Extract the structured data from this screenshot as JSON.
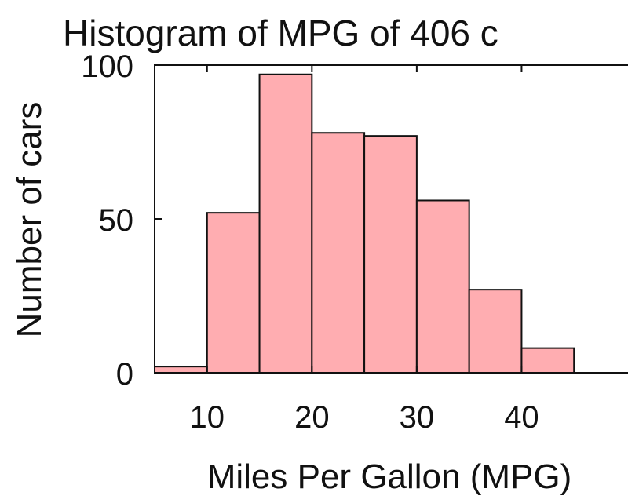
{
  "chart_data": {
    "type": "bar",
    "title": "Histogram of MPG of 406 c",
    "xlabel": "Miles Per Gallon (MPG)",
    "ylabel": "Number of cars",
    "bin_edges": [
      5,
      10,
      15,
      20,
      25,
      30,
      35,
      40,
      45
    ],
    "values": [
      2,
      52,
      97,
      78,
      77,
      56,
      27,
      8
    ],
    "xticks": [
      10,
      20,
      30,
      40
    ],
    "yticks": [
      0,
      50,
      100
    ],
    "xlim": [
      5,
      45
    ],
    "ylim": [
      0,
      100
    ],
    "grid": false,
    "bar_color": "#ffadb1",
    "edge_color": "#111111"
  }
}
